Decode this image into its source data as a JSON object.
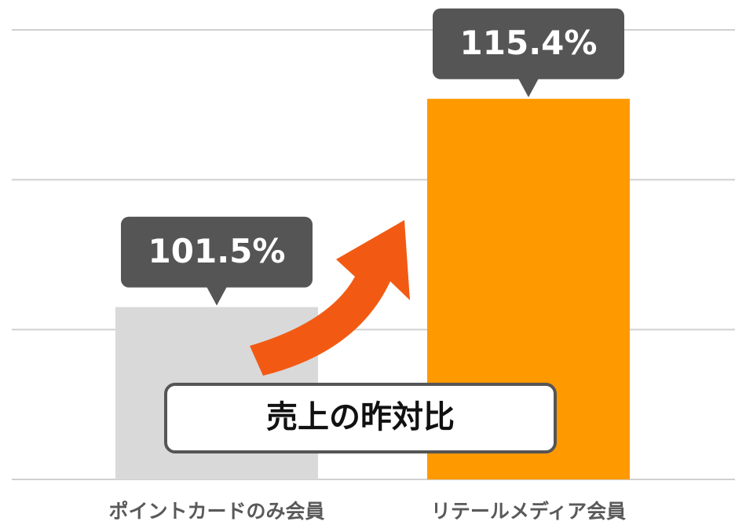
{
  "chart_data": {
    "type": "bar",
    "categories": [
      "ポイントカードのみ会員",
      "リテールメディア会員"
    ],
    "values": [
      101.5,
      115.4
    ],
    "value_labels": [
      "101.5%",
      "115.4%"
    ],
    "colors": [
      "#d9d9d9",
      "#ff9900"
    ],
    "annotation": "売上の昨対比",
    "ylim": [
      90,
      120
    ],
    "yticks": [
      90,
      100,
      110,
      120
    ],
    "grid": true
  }
}
